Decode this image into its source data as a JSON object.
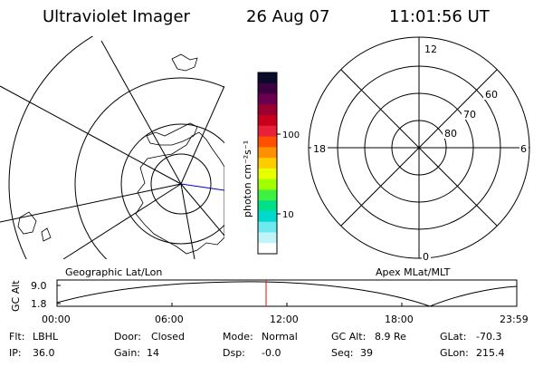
{
  "header": {
    "instrument": "Ultraviolet Imager",
    "date": "26 Aug 07",
    "time": "11:01:56 UT"
  },
  "left_panel": {
    "label": "Geographic Lat/Lon"
  },
  "right_panel": {
    "label": "Apex MLat/MLT",
    "mlt_labels": {
      "top": "12",
      "left": "18",
      "right": "6",
      "bottom": "0"
    },
    "lat_labels": [
      "60",
      "70",
      "80"
    ]
  },
  "colorbar": {
    "label": "photon cm⁻²s⁻¹",
    "ticks": [
      "100",
      "10"
    ],
    "colors": [
      "#0a0a2a",
      "#3a0040",
      "#6a0050",
      "#9a0030",
      "#c8001e",
      "#e8203a",
      "#ff5000",
      "#ff9000",
      "#ffcc00",
      "#e8ff00",
      "#a0ff00",
      "#40f040",
      "#00e08a",
      "#00d8d0",
      "#70e8f0",
      "#c0f4f8",
      "#ffffff"
    ]
  },
  "orbit_plot": {
    "ylabel": "GC Alt",
    "y_ticks": [
      "9.0",
      "1.8"
    ],
    "x_ticks": [
      "00:00",
      "06:00",
      "12:00",
      "18:00",
      "23:59"
    ],
    "marker_color": "#ff0000"
  },
  "footer": {
    "row1": [
      {
        "k": "Flt:",
        "v": "LBHL"
      },
      {
        "k": "Door:",
        "v": "Closed"
      },
      {
        "k": "Mode:",
        "v": "Normal"
      },
      {
        "k": "GC Alt:",
        "v": "8.9 Re"
      },
      {
        "k": "GLat:",
        "v": "-70.3"
      }
    ],
    "row2": [
      {
        "k": "IP:",
        "v": "36.0"
      },
      {
        "k": "Gain:",
        "v": "14"
      },
      {
        "k": "Dsp:",
        "v": "-0.0"
      },
      {
        "k": "Seq:",
        "v": "39"
      },
      {
        "k": "GLon:",
        "v": "215.4"
      }
    ]
  }
}
